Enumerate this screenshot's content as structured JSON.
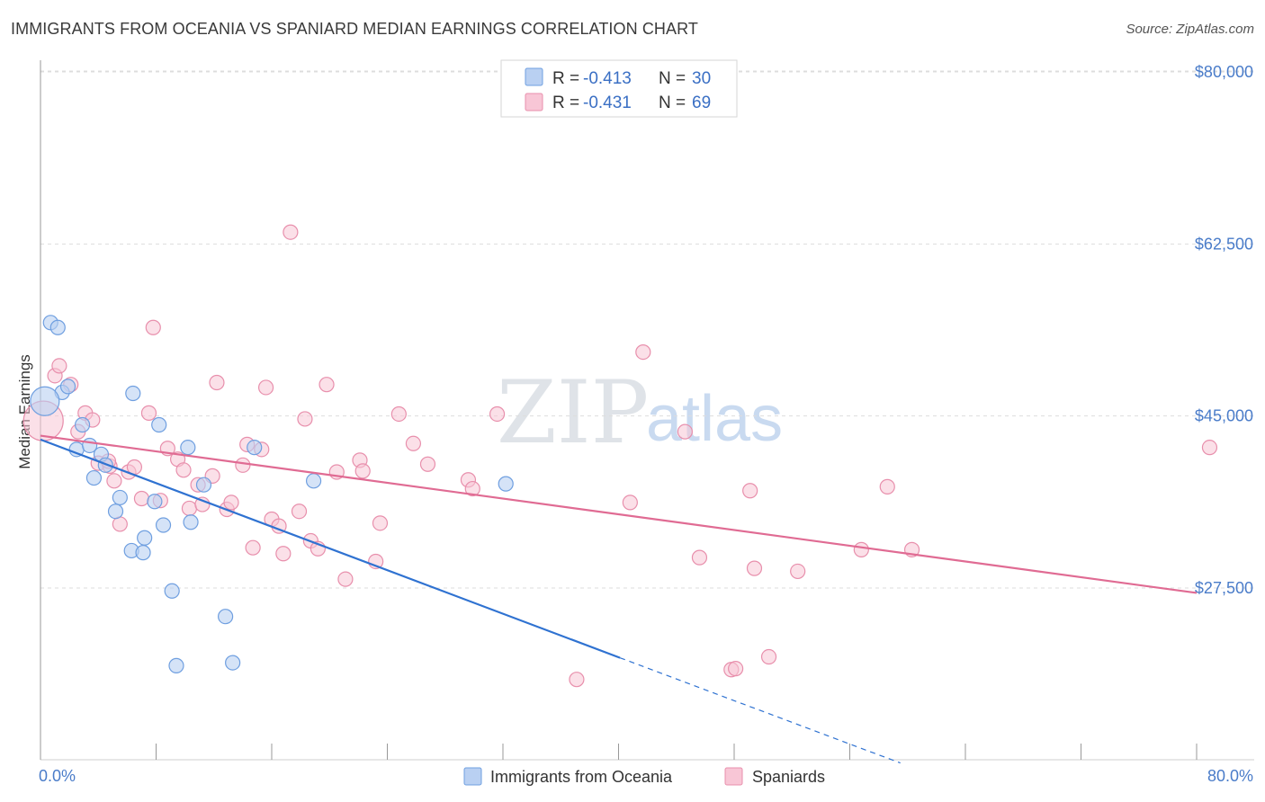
{
  "title": "IMMIGRANTS FROM OCEANIA VS SPANIARD MEDIAN EARNINGS CORRELATION CHART",
  "source": "Source: ZipAtlas.com",
  "watermark": {
    "zip": "ZIP",
    "atlas": "atlas"
  },
  "colors": {
    "blue_fill": "#b9d0f2",
    "blue_stroke": "#6f9fe0",
    "blue_line": "#2f72d1",
    "pink_fill": "#f8c6d6",
    "pink_stroke": "#e88fac",
    "pink_line": "#e06b93",
    "tick_text": "#4a7cc9",
    "grid": "#dddddd"
  },
  "legend_top": {
    "rows": [
      {
        "r_label": "R = ",
        "r_value": "-0.413",
        "n_label": "N = ",
        "n_value": "30"
      },
      {
        "r_label": "R = ",
        "r_value": "-0.431",
        "n_label": "N = ",
        "n_value": "69"
      }
    ]
  },
  "legend_bottom": {
    "items": [
      "Immigrants from Oceania",
      "Spaniards"
    ]
  },
  "chart_data": {
    "type": "scatter",
    "title": "IMMIGRANTS FROM OCEANIA VS SPANIARD MEDIAN EARNINGS CORRELATION CHART",
    "xlabel": "",
    "ylabel": "Median Earnings",
    "xlim": [
      0,
      80
    ],
    "ylim": [
      10000,
      83000
    ],
    "x_tick_labels": [
      "0.0%",
      "80.0%"
    ],
    "y_ticks": [
      27500,
      45000,
      62500,
      80000
    ],
    "y_tick_labels": [
      "$27,500",
      "$45,000",
      "$62,500",
      "$80,000"
    ],
    "grid": true,
    "series": [
      {
        "name": "Immigrants from Oceania",
        "color": "#6f9fe0",
        "points": [
          [
            0.7,
            54.5
          ],
          [
            1.2,
            54.0
          ],
          [
            1.5,
            47.4
          ],
          [
            1.9,
            48.0
          ],
          [
            0.3,
            46.5
          ],
          [
            2.9,
            44.1
          ],
          [
            2.5,
            41.6
          ],
          [
            3.4,
            42.0
          ],
          [
            4.2,
            41.1
          ],
          [
            4.5,
            40.0
          ],
          [
            3.7,
            38.7
          ],
          [
            5.5,
            36.7
          ],
          [
            5.2,
            35.3
          ],
          [
            6.3,
            31.3
          ],
          [
            7.1,
            31.1
          ],
          [
            7.2,
            32.6
          ],
          [
            7.9,
            36.3
          ],
          [
            8.5,
            33.9
          ],
          [
            8.2,
            44.1
          ],
          [
            9.1,
            27.2
          ],
          [
            9.4,
            19.6
          ],
          [
            10.2,
            41.8
          ],
          [
            10.4,
            34.2
          ],
          [
            11.3,
            38.0
          ],
          [
            12.8,
            24.6
          ],
          [
            13.3,
            19.9
          ],
          [
            14.8,
            41.8
          ],
          [
            18.9,
            38.4
          ],
          [
            6.4,
            47.3
          ],
          [
            32.2,
            38.1
          ]
        ],
        "trend": {
          "x0": 0,
          "y0": 42.6,
          "x1": 40.1,
          "y1": 20.4,
          "dashed_to_x": 59.5,
          "dashed_to_y": 9.7
        }
      },
      {
        "name": "Spaniards",
        "color": "#e88fac",
        "points": [
          [
            0.2,
            44.5
          ],
          [
            1.0,
            49.1
          ],
          [
            1.3,
            50.1
          ],
          [
            2.1,
            48.2
          ],
          [
            2.6,
            43.4
          ],
          [
            3.1,
            45.3
          ],
          [
            3.6,
            44.6
          ],
          [
            4.0,
            40.2
          ],
          [
            4.8,
            39.9
          ],
          [
            5.1,
            38.4
          ],
          [
            5.5,
            34.0
          ],
          [
            6.1,
            39.3
          ],
          [
            6.5,
            39.8
          ],
          [
            7.0,
            36.6
          ],
          [
            7.5,
            45.3
          ],
          [
            7.8,
            54.0
          ],
          [
            8.3,
            36.4
          ],
          [
            8.8,
            41.7
          ],
          [
            9.5,
            40.6
          ],
          [
            9.9,
            39.5
          ],
          [
            10.3,
            35.6
          ],
          [
            10.9,
            38.0
          ],
          [
            11.2,
            36.0
          ],
          [
            11.9,
            38.9
          ],
          [
            12.2,
            48.4
          ],
          [
            12.9,
            35.5
          ],
          [
            13.2,
            36.2
          ],
          [
            14.0,
            40.0
          ],
          [
            14.3,
            42.1
          ],
          [
            14.7,
            31.6
          ],
          [
            15.3,
            41.6
          ],
          [
            15.6,
            47.9
          ],
          [
            16.0,
            34.5
          ],
          [
            16.5,
            33.8
          ],
          [
            16.8,
            31.0
          ],
          [
            17.3,
            63.7
          ],
          [
            17.9,
            35.3
          ],
          [
            18.3,
            44.7
          ],
          [
            18.7,
            32.3
          ],
          [
            19.2,
            31.5
          ],
          [
            19.8,
            48.2
          ],
          [
            20.5,
            39.3
          ],
          [
            21.1,
            28.4
          ],
          [
            22.1,
            40.5
          ],
          [
            22.3,
            39.4
          ],
          [
            23.2,
            30.2
          ],
          [
            23.5,
            34.1
          ],
          [
            24.8,
            45.2
          ],
          [
            25.8,
            42.2
          ],
          [
            26.8,
            40.1
          ],
          [
            29.6,
            38.5
          ],
          [
            29.9,
            37.6
          ],
          [
            31.6,
            45.2
          ],
          [
            40.8,
            36.2
          ],
          [
            41.7,
            51.5
          ],
          [
            44.6,
            43.4
          ],
          [
            45.6,
            30.6
          ],
          [
            37.1,
            18.2
          ],
          [
            47.8,
            19.2
          ],
          [
            48.1,
            19.3
          ],
          [
            49.1,
            37.4
          ],
          [
            49.4,
            29.5
          ],
          [
            50.4,
            20.5
          ],
          [
            52.4,
            29.2
          ],
          [
            56.8,
            31.4
          ],
          [
            58.6,
            37.8
          ],
          [
            60.3,
            31.4
          ],
          [
            80.9,
            41.8
          ],
          [
            4.7,
            40.4
          ]
        ],
        "trend": {
          "x0": 0,
          "y0": 43.0,
          "x1": 80,
          "y1": 27.0
        }
      }
    ]
  }
}
